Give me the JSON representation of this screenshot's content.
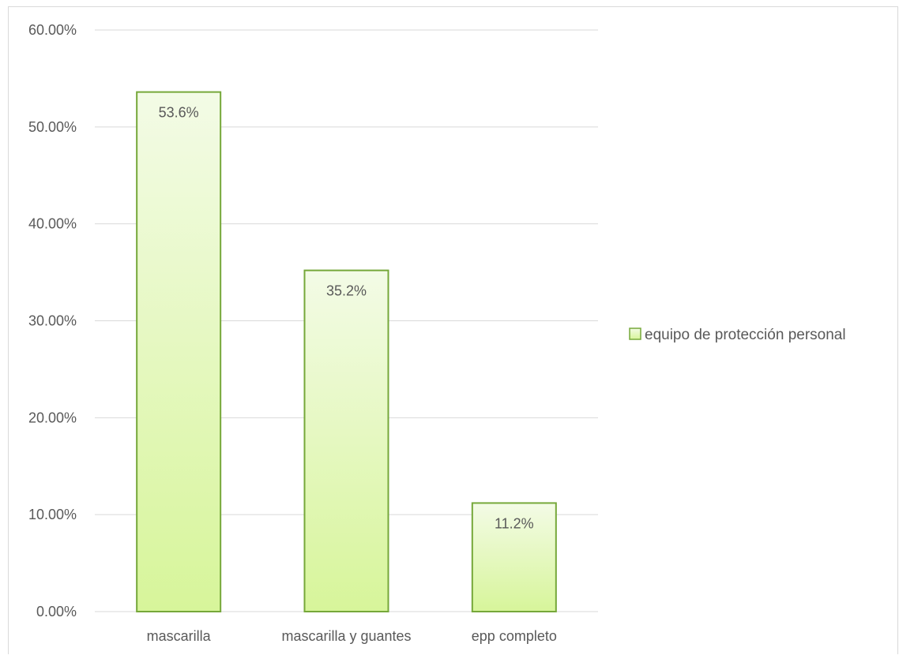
{
  "chart_data": {
    "type": "bar",
    "categories": [
      "mascarilla",
      "mascarilla y guantes",
      "epp completo"
    ],
    "series": [
      {
        "name": "equipo de protección personal",
        "values": [
          53.6,
          35.2,
          11.2
        ]
      }
    ],
    "data_labels": [
      "53.6%",
      "35.2%",
      "11.2%"
    ],
    "ylim": [
      0,
      60
    ],
    "y_ticks": [
      0,
      10,
      20,
      30,
      40,
      50,
      60
    ],
    "y_tick_labels": [
      "0.00%",
      "10.00%",
      "20.00%",
      "30.00%",
      "40.00%",
      "50.00%",
      "60.00%"
    ],
    "grid": true,
    "legend_position": "right",
    "colors": {
      "bar_fill_top": "#f3fbe6",
      "bar_fill_bottom": "#d7f59a",
      "bar_border": "#76a83a",
      "gridline": "#d9d9d9",
      "text": "#595959"
    }
  }
}
